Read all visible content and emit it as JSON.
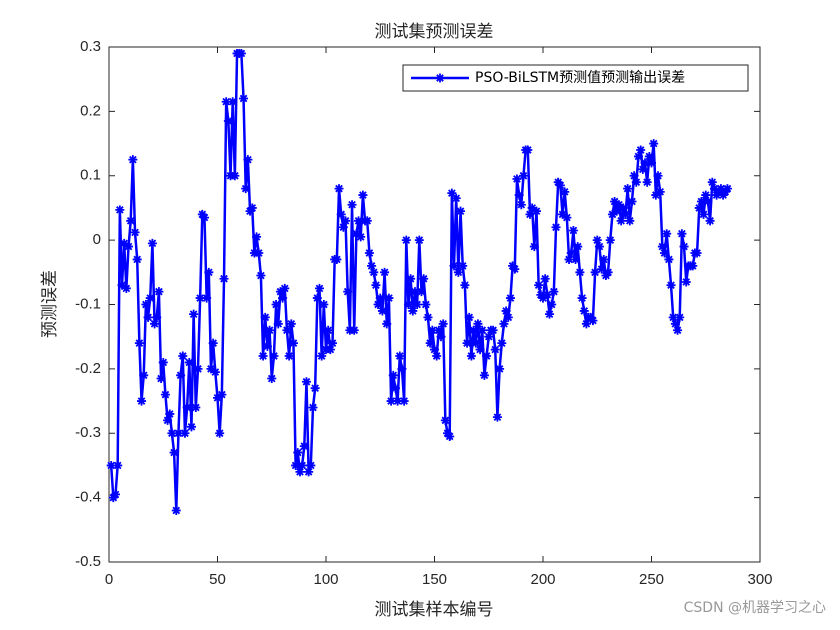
{
  "chart_data": {
    "type": "line",
    "title": "测试集预测误差",
    "xlabel": "测试集样本编号",
    "ylabel": "预测误差",
    "annotation": "CSDN @机器学习之心",
    "legend": "upper right",
    "xlim": [
      0,
      300
    ],
    "xticks": [
      0,
      50,
      100,
      150,
      200,
      250,
      300
    ],
    "ylim": [
      -0.5,
      0.3
    ],
    "yticks": [
      -0.5,
      -0.4,
      -0.3,
      -0.2,
      -0.1,
      0,
      0.1,
      0.2,
      0.3
    ],
    "x": [
      1,
      2,
      3,
      4,
      5,
      6,
      7,
      8,
      9,
      10,
      11,
      12,
      13,
      14,
      15,
      16,
      17,
      18,
      19,
      20,
      21,
      22,
      23,
      24,
      25,
      26,
      27,
      28,
      29,
      30,
      31,
      32,
      33,
      34,
      35,
      36,
      37,
      38,
      39,
      40,
      41,
      42,
      43,
      44,
      45,
      46,
      47,
      48,
      49,
      50,
      51,
      52,
      53,
      54,
      55,
      56,
      57,
      58,
      59,
      60,
      61,
      62,
      63,
      64,
      65,
      66,
      67,
      68,
      69,
      70,
      71,
      72,
      73,
      74,
      75,
      76,
      77,
      78,
      79,
      80,
      81,
      82,
      83,
      84,
      85,
      86,
      87,
      88,
      89,
      90,
      91,
      92,
      93,
      94,
      95,
      96,
      97,
      98,
      99,
      100,
      101,
      102,
      103,
      104,
      105,
      106,
      107,
      108,
      109,
      110,
      111,
      112,
      113,
      114,
      115,
      116,
      117,
      118,
      119,
      120,
      121,
      122,
      123,
      124,
      125,
      126,
      127,
      128,
      129,
      130,
      131,
      132,
      133,
      134,
      135,
      136,
      137,
      138,
      139,
      140,
      141,
      142,
      143,
      144,
      145,
      146,
      147,
      148,
      149,
      150,
      151,
      152,
      153,
      154,
      155,
      156,
      157,
      158,
      159,
      160,
      161,
      162,
      163,
      164,
      165,
      166,
      167,
      168,
      169,
      170,
      171,
      172,
      173,
      174,
      175,
      176,
      177,
      178,
      179,
      180,
      181,
      182,
      183,
      184,
      185,
      186,
      187,
      188,
      189,
      190,
      191,
      192,
      193,
      194,
      195,
      196,
      197,
      198,
      199,
      200,
      201,
      202,
      203,
      204,
      205,
      206,
      207,
      208,
      209,
      210,
      211,
      212,
      213,
      214,
      215,
      216,
      217,
      218,
      219,
      220,
      221,
      222,
      223,
      224,
      225,
      226,
      227,
      228,
      229,
      230,
      231,
      232,
      233,
      234,
      235,
      236,
      237,
      238,
      239,
      240,
      241,
      242,
      243,
      244,
      245,
      246,
      247,
      248,
      249,
      250,
      251,
      252,
      253,
      254,
      255,
      256,
      257,
      258,
      259,
      260,
      261,
      262,
      263,
      264,
      265,
      266,
      267,
      268,
      269,
      270,
      271,
      272,
      273,
      274,
      275,
      276,
      277,
      278,
      279,
      280,
      281,
      282,
      283,
      284,
      285
    ],
    "series": [
      {
        "name": "PSO-BiLSTM预测值预测输出误差",
        "color": "#0000ff",
        "values": [
          -0.35,
          -0.4,
          -0.395,
          -0.35,
          0.047,
          -0.07,
          -0.005,
          -0.075,
          -0.01,
          0.03,
          0.125,
          0.012,
          -0.03,
          -0.16,
          -0.25,
          -0.21,
          -0.1,
          -0.12,
          -0.09,
          -0.005,
          -0.13,
          -0.12,
          -0.08,
          -0.215,
          -0.19,
          -0.24,
          -0.28,
          -0.27,
          -0.3,
          -0.33,
          -0.42,
          -0.3,
          -0.21,
          -0.18,
          -0.3,
          -0.26,
          -0.19,
          -0.29,
          -0.115,
          -0.26,
          -0.2,
          -0.09,
          0.04,
          0.035,
          -0.09,
          -0.05,
          -0.2,
          -0.16,
          -0.205,
          -0.245,
          -0.3,
          -0.24,
          -0.06,
          0.215,
          0.185,
          0.1,
          0.215,
          0.1,
          0.29,
          0.29,
          0.29,
          0.22,
          0.08,
          0.125,
          0.045,
          0.05,
          -0.02,
          0.005,
          -0.02,
          -0.055,
          -0.18,
          -0.12,
          -0.165,
          -0.14,
          -0.215,
          -0.18,
          -0.1,
          -0.13,
          -0.08,
          -0.09,
          -0.075,
          -0.14,
          -0.18,
          -0.13,
          -0.16,
          -0.35,
          -0.33,
          -0.36,
          -0.35,
          -0.32,
          -0.22,
          -0.36,
          -0.35,
          -0.26,
          -0.23,
          -0.09,
          -0.075,
          -0.18,
          -0.1,
          -0.17,
          -0.14,
          -0.17,
          -0.16,
          -0.03,
          -0.03,
          0.08,
          0.04,
          0.02,
          0.03,
          -0.08,
          -0.14,
          0.055,
          -0.14,
          0.01,
          0.03,
          0.005,
          0.07,
          0.03,
          0.03,
          -0.02,
          -0.04,
          -0.05,
          -0.07,
          -0.1,
          -0.09,
          -0.11,
          -0.05,
          -0.13,
          -0.09,
          -0.25,
          -0.21,
          -0.23,
          -0.25,
          -0.18,
          -0.2,
          -0.25,
          0.0,
          -0.1,
          -0.06,
          -0.11,
          -0.08,
          -0.1,
          0.0,
          -0.08,
          -0.06,
          -0.1,
          -0.12,
          -0.16,
          -0.14,
          -0.17,
          -0.18,
          -0.14,
          -0.15,
          -0.13,
          -0.28,
          -0.3,
          -0.305,
          0.073,
          -0.04,
          0.065,
          -0.05,
          0.045,
          -0.04,
          -0.07,
          -0.16,
          -0.12,
          -0.18,
          -0.14,
          -0.16,
          -0.13,
          -0.17,
          -0.14,
          -0.21,
          -0.18,
          -0.15,
          -0.14,
          -0.14,
          -0.17,
          -0.275,
          -0.2,
          -0.16,
          -0.13,
          -0.11,
          -0.12,
          -0.09,
          -0.04,
          -0.045,
          0.095,
          0.07,
          0.055,
          0.1,
          0.14,
          0.14,
          0.04,
          0.05,
          -0.01,
          0.045,
          -0.07,
          -0.085,
          -0.09,
          -0.06,
          -0.085,
          -0.115,
          -0.1,
          -0.08,
          0.02,
          0.09,
          0.085,
          0.04,
          0.075,
          0.035,
          -0.03,
          -0.02,
          0.015,
          -0.03,
          -0.01,
          -0.05,
          -0.09,
          -0.11,
          -0.13,
          -0.12,
          -0.12,
          -0.125,
          -0.05,
          0.0,
          -0.01,
          -0.045,
          -0.03,
          -0.055,
          -0.05,
          0.0,
          0.04,
          0.06,
          0.045,
          0.055,
          0.03,
          0.05,
          0.04,
          0.08,
          0.03,
          0.06,
          0.1,
          0.09,
          0.13,
          0.14,
          0.11,
          0.12,
          0.09,
          0.13,
          0.12,
          0.15,
          0.07,
          0.1,
          0.075,
          -0.01,
          -0.02,
          0.01,
          -0.03,
          -0.07,
          -0.12,
          -0.13,
          -0.14,
          -0.12,
          0.01,
          -0.01,
          -0.065,
          -0.04,
          -0.04,
          -0.04,
          -0.02,
          -0.02,
          0.05,
          0.06,
          0.04,
          0.07,
          0.06,
          0.03,
          0.09,
          0.08,
          0.07,
          0.075,
          0.08,
          0.07,
          0.075,
          0.08
        ]
      }
    ]
  }
}
